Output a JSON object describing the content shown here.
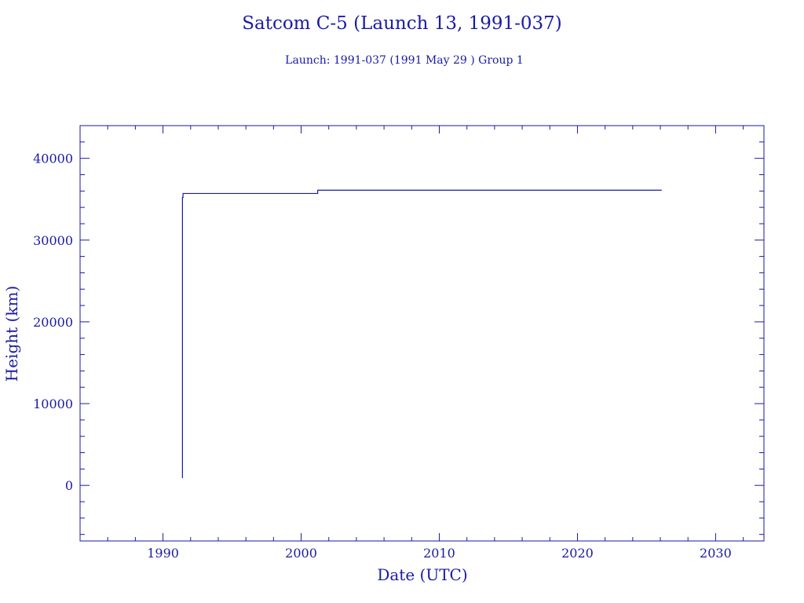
{
  "chart_data": {
    "type": "line",
    "title": "Satcom C-5 (Launch 13, 1991-037)",
    "subtitle": "Launch: 1991-037  (1991 May 29 )  Group 1",
    "xlabel": "Date (UTC)",
    "ylabel": "Height (km)",
    "xlim": [
      1984,
      2033.5
    ],
    "ylim": [
      -6800,
      44000
    ],
    "x_ticks": [
      1990,
      2000,
      2010,
      2020,
      2030
    ],
    "y_ticks": [
      0,
      10000,
      20000,
      30000,
      40000
    ],
    "x_tick_labels": [
      "1990",
      "2000",
      "2010",
      "2020",
      "2030"
    ],
    "y_tick_labels": [
      "0",
      "10000",
      "20000",
      "30000",
      "40000"
    ],
    "grid": false,
    "color": "#1a1aa6",
    "series": [
      {
        "x": [
          1991.41,
          1991.41,
          1991.45,
          1991.45,
          1991.5,
          2001.2,
          2001.2,
          2026.1
        ],
        "y": [
          900,
          35200,
          35200,
          35700,
          35700,
          35700,
          36100,
          36100
        ]
      }
    ]
  }
}
